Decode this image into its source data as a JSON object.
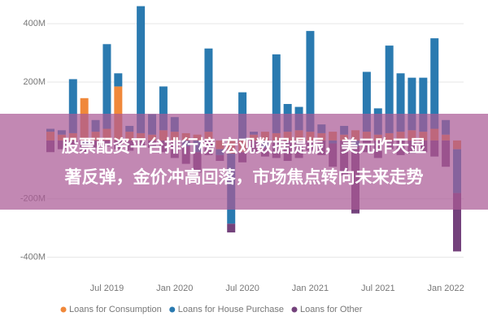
{
  "chart_data": {
    "type": "bar",
    "stacked": true,
    "categories": [
      null,
      null,
      null,
      null,
      null,
      "Jul 2019",
      null,
      null,
      null,
      null,
      null,
      "Jan 2020",
      null,
      null,
      null,
      null,
      null,
      "Jul 2020",
      null,
      null,
      null,
      null,
      null,
      "Jan 2021",
      null,
      null,
      null,
      null,
      null,
      "Jul 2021",
      null,
      null,
      null,
      null,
      null,
      "Jan 2022",
      null
    ],
    "series": [
      {
        "name": "Loans for Consumption",
        "color": "#f0883a",
        "values": [
          30,
          20,
          25,
          145,
          30,
          40,
          185,
          30,
          25,
          20,
          35,
          30,
          25,
          20,
          30,
          -30,
          -45,
          -40,
          20,
          30,
          25,
          30,
          35,
          30,
          25,
          30,
          20,
          35,
          30,
          20,
          25,
          30,
          35,
          30,
          40,
          20,
          -30
        ]
      },
      {
        "name": "Loans for House Purchase",
        "color": "#2a7ab0",
        "values": [
          10,
          15,
          185,
          -10,
          40,
          290,
          45,
          20,
          435,
          70,
          150,
          50,
          -20,
          -40,
          285,
          -20,
          -240,
          165,
          10,
          -25,
          270,
          95,
          80,
          345,
          30,
          -10,
          30,
          -20,
          205,
          90,
          300,
          200,
          180,
          185,
          310,
          50,
          -150
        ]
      },
      {
        "name": "Loans for Other",
        "color": "#74427c",
        "values": [
          -40,
          -30,
          -20,
          -30,
          -25,
          -20,
          -30,
          -35,
          -20,
          -25,
          -40,
          -60,
          -60,
          -70,
          -50,
          -20,
          -30,
          -35,
          -40,
          -30,
          -60,
          -70,
          -60,
          -35,
          -50,
          -80,
          -120,
          -230,
          -40,
          -60,
          -30,
          -50,
          -45,
          -40,
          -55,
          -90,
          -200
        ]
      }
    ],
    "ylim": [
      -440,
      470
    ],
    "yticks": [
      {
        "value": -400,
        "label": "-400M"
      },
      {
        "value": -200,
        "label": "-200M"
      },
      {
        "value": 200,
        "label": "200M"
      },
      {
        "value": 400,
        "label": "400M"
      }
    ],
    "grid": true,
    "legend": "bottom",
    "annotations": [
      "股票配资平台排行榜 宏观数据提振，美元昨天显",
      "著反弹，金价冲高回落，市场焦点转向未来走势"
    ]
  }
}
